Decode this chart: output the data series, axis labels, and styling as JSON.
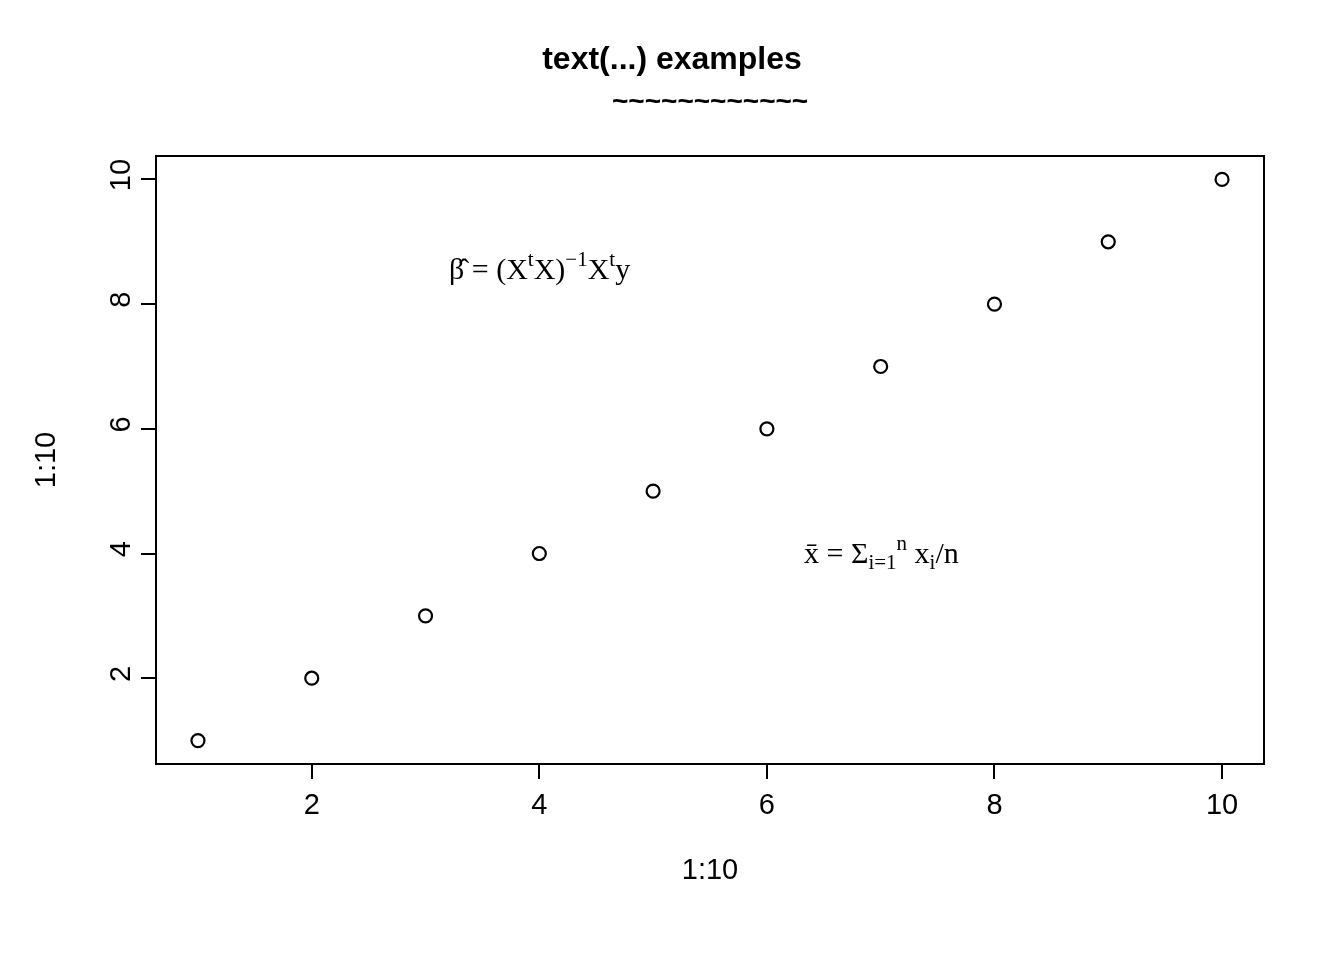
{
  "chart_data": {
    "type": "scatter",
    "title": "text(...) examples",
    "subtitle": "~~~~~~~~~~~~",
    "xlabel": "1:10",
    "ylabel": "1:10",
    "x": [
      1,
      2,
      3,
      4,
      5,
      6,
      7,
      8,
      9,
      10
    ],
    "values": [
      1,
      2,
      3,
      4,
      5,
      6,
      7,
      8,
      9,
      10
    ],
    "color": "#000000",
    "marker": "circle",
    "grid": false,
    "legend": false,
    "xlim": [
      0.64,
      10.36
    ],
    "ylim": [
      0.64,
      10.36
    ],
    "xticks": [
      2,
      4,
      6,
      8,
      10
    ],
    "yticks": [
      2,
      4,
      6,
      8,
      10
    ],
    "annotations": [
      "β̂ = (X$^{t}$X)$^{−1}$X$^{t}$y",
      "x̄ = Σ$_{i=1}$$^{n}$ x$_{i}$/n"
    ]
  }
}
